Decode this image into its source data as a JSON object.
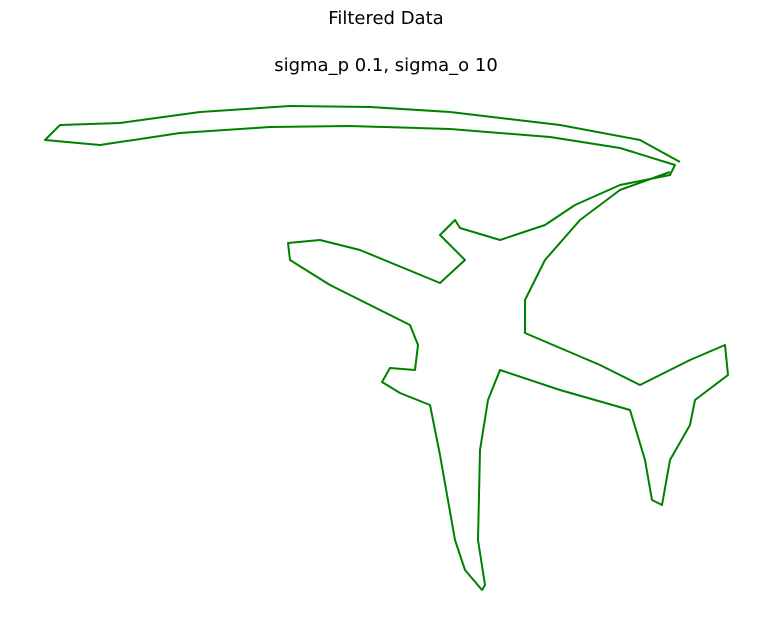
{
  "chart_data": {
    "type": "line",
    "title": "Filtered Data",
    "subtitle": "sigma_p 0.1, sigma_o 10",
    "x": [
      680,
      640,
      560,
      450,
      370,
      290,
      200,
      120,
      60,
      45,
      100,
      180,
      270,
      350,
      450,
      550,
      620,
      675,
      670,
      620,
      575,
      545,
      500,
      460,
      455,
      440,
      465,
      440,
      360,
      320,
      288,
      290,
      330,
      410,
      418,
      415,
      390,
      382,
      400,
      430,
      440,
      455,
      465,
      482,
      485,
      478,
      480,
      488,
      500,
      560,
      630,
      645,
      652,
      662,
      670,
      690,
      695,
      728,
      725,
      690,
      640,
      600,
      525,
      525,
      545,
      580,
      620,
      670
    ],
    "series": [
      {
        "color": "#008000",
        "values": [
          467,
          489,
          504,
          517,
          522,
          523,
          517,
          506,
          504,
          489,
          484,
          496,
          502,
          503,
          500,
          492,
          481,
          464,
          454,
          444,
          424,
          404,
          389,
          401,
          409,
          394,
          369,
          346,
          379,
          389,
          386,
          369,
          344,
          304,
          284,
          259,
          261,
          247,
          236,
          224,
          174,
          89,
          59,
          39,
          44,
          89,
          179,
          229,
          259,
          239,
          219,
          169,
          129,
          124,
          169,
          204,
          229,
          254,
          284,
          269,
          244,
          264,
          296,
          329,
          369,
          409,
          439,
          457
        ]
      }
    ],
    "xlim": [
      40,
      740
    ],
    "ylim": [
      20,
      530
    ]
  }
}
